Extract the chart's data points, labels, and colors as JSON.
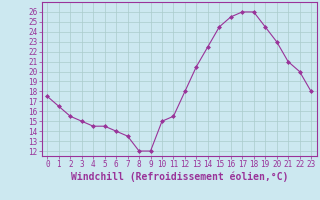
{
  "x": [
    0,
    1,
    2,
    3,
    4,
    5,
    6,
    7,
    8,
    9,
    10,
    11,
    12,
    13,
    14,
    15,
    16,
    17,
    18,
    19,
    20,
    21,
    22,
    23
  ],
  "y": [
    17.5,
    16.5,
    15.5,
    15.0,
    14.5,
    14.5,
    14.0,
    13.5,
    12.0,
    12.0,
    15.0,
    15.5,
    18.0,
    20.5,
    22.5,
    24.5,
    25.5,
    26.0,
    26.0,
    24.5,
    23.0,
    21.0,
    20.0,
    18.0
  ],
  "line_color": "#993399",
  "marker_color": "#993399",
  "bg_color": "#cce8f0",
  "grid_color": "#aacccc",
  "xlabel": "Windchill (Refroidissement éolien,°C)",
  "xlim": [
    -0.5,
    23.5
  ],
  "ylim": [
    11.5,
    27.0
  ],
  "yticks": [
    12,
    13,
    14,
    15,
    16,
    17,
    18,
    19,
    20,
    21,
    22,
    23,
    24,
    25,
    26
  ],
  "xticks": [
    0,
    1,
    2,
    3,
    4,
    5,
    6,
    7,
    8,
    9,
    10,
    11,
    12,
    13,
    14,
    15,
    16,
    17,
    18,
    19,
    20,
    21,
    22,
    23
  ],
  "xlabel_color": "#993399",
  "tick_color": "#993399",
  "font_size": 5.5,
  "xlabel_font_size": 7.0
}
